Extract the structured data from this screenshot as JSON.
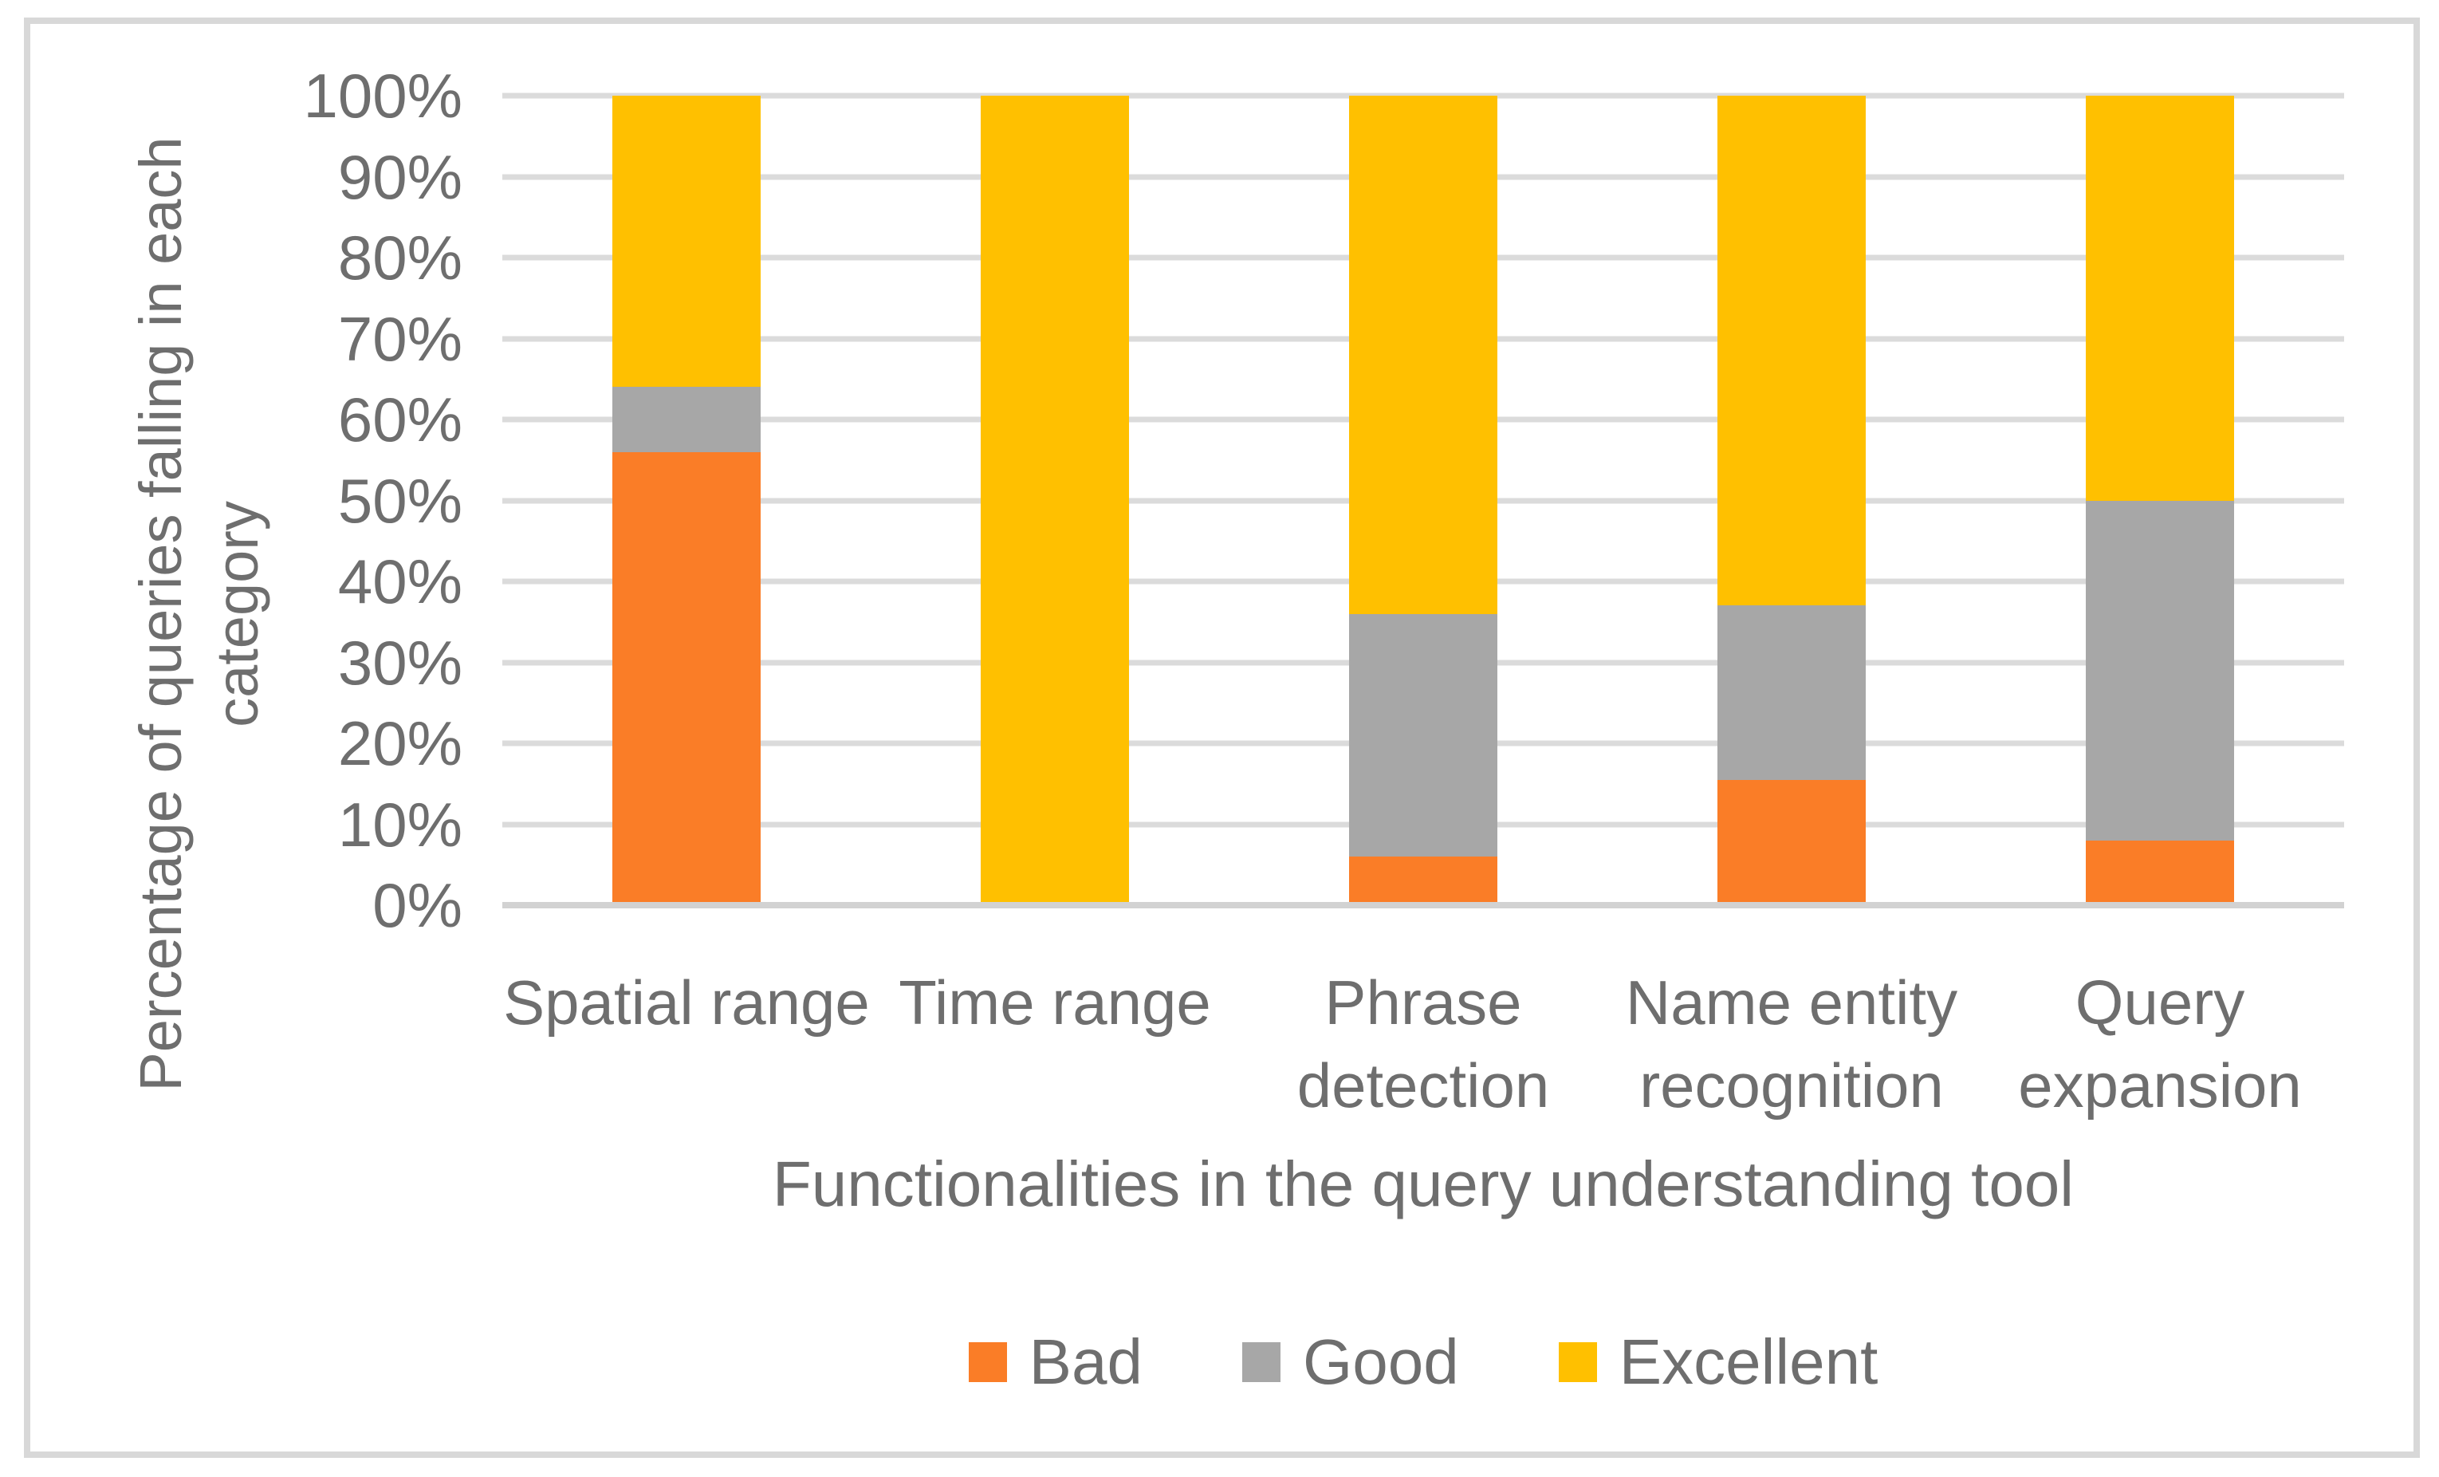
{
  "figure": {
    "background_color": "#ffffff",
    "border_color": "#d8d8d8",
    "text_color": "#6e6e6e",
    "gridline_color": "#dbdbdb",
    "axis_line_color": "#d2d2d2"
  },
  "chart_data": {
    "type": "bar",
    "variant": "stacked-100-percent-column",
    "title": "",
    "xlabel": "Functionalities in the query understanding tool",
    "ylabel": "Percentage of  queries falling in each category",
    "ylabel_lines": [
      "Percentage of  queries falling in each",
      "category"
    ],
    "categories": [
      "Spatial range",
      "Time range",
      "Phrase detection",
      "Name entity recognition",
      "Query expansion"
    ],
    "category_label_lines": [
      [
        "Spatial range"
      ],
      [
        "Time range"
      ],
      [
        "Phrase",
        "detection"
      ],
      [
        "Name entity",
        "recognition"
      ],
      [
        "Query",
        "expansion"
      ]
    ],
    "series": [
      {
        "name": "Bad",
        "color": "#fa7d27",
        "values": [
          56,
          0,
          6,
          15.5,
          8
        ]
      },
      {
        "name": "Good",
        "color": "#a7a7a7",
        "values": [
          8,
          0,
          30,
          21.5,
          42
        ]
      },
      {
        "name": "Excellent",
        "color": "#ffc000",
        "values": [
          36,
          100,
          64,
          63,
          50
        ]
      }
    ],
    "y_ticks": [
      "0%",
      "10%",
      "20%",
      "30%",
      "40%",
      "50%",
      "60%",
      "70%",
      "80%",
      "90%",
      "100%"
    ],
    "ylim": [
      0,
      100
    ],
    "grid": true,
    "legend_position": "bottom",
    "legend_labels": [
      "Bad",
      "Good",
      "Excellent"
    ]
  }
}
